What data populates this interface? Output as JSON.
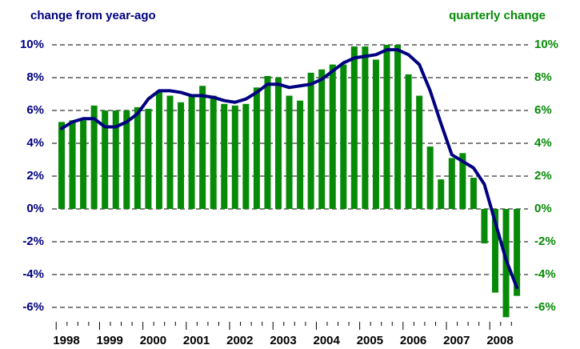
{
  "chart_data": {
    "type": "bar-line",
    "ylabel": "change from year-ago",
    "y2label": "quarterly change",
    "categories": [
      "1998",
      null,
      null,
      null,
      "1999",
      null,
      null,
      null,
      "2000",
      null,
      null,
      null,
      "2001",
      null,
      null,
      null,
      "2002",
      null,
      null,
      null,
      "2003",
      null,
      null,
      null,
      "2004",
      null,
      null,
      null,
      "2005",
      null,
      null,
      null,
      "2006",
      null,
      null,
      null,
      "2007",
      null,
      null,
      null,
      "2008",
      null,
      null
    ],
    "series": [
      {
        "name": "quarterly change",
        "type": "bar",
        "axis": "y2",
        "color": "#078a07",
        "values": [
          5.3,
          5.4,
          5.4,
          6.3,
          6.0,
          6.0,
          6.0,
          6.2,
          6.1,
          7.2,
          6.9,
          6.5,
          6.9,
          7.5,
          6.9,
          6.4,
          6.3,
          6.4,
          7.4,
          8.1,
          8.0,
          6.9,
          6.6,
          8.3,
          8.5,
          8.8,
          8.8,
          9.9,
          9.9,
          9.1,
          10.0,
          10.0,
          8.2,
          6.9,
          3.8,
          1.8,
          3.1,
          3.4,
          1.9,
          -2.1,
          -5.1,
          -6.6,
          -5.3
        ]
      },
      {
        "name": "change from year-ago",
        "type": "line",
        "color": "#000080",
        "values": [
          4.9,
          5.3,
          5.5,
          5.5,
          5.0,
          5.0,
          5.3,
          5.8,
          6.7,
          7.2,
          7.2,
          7.1,
          6.9,
          6.9,
          6.8,
          6.6,
          6.5,
          6.7,
          7.1,
          7.6,
          7.6,
          7.4,
          7.5,
          7.6,
          7.9,
          8.4,
          8.9,
          9.2,
          9.3,
          9.4,
          9.7,
          9.7,
          9.4,
          8.8,
          7.2,
          5.2,
          3.3,
          2.9,
          2.5,
          1.5,
          -0.8,
          -3.1,
          -4.8
        ]
      }
    ],
    "ylim": [
      -7,
      10
    ],
    "yticks": [
      {
        "value": -6,
        "label": "-6%"
      },
      {
        "value": -4,
        "label": "-4%"
      },
      {
        "value": -2,
        "label": "-2%"
      },
      {
        "value": 0,
        "label": "0%"
      },
      {
        "value": 2,
        "label": "2%"
      },
      {
        "value": 4,
        "label": "4%"
      },
      {
        "value": 6,
        "label": "6%"
      },
      {
        "value": 8,
        "label": "8%"
      },
      {
        "value": 10,
        "label": "10%"
      }
    ],
    "y2lim": [
      -7,
      10
    ],
    "y2ticks": [
      {
        "value": -6,
        "label": "-6%"
      },
      {
        "value": -4,
        "label": "-4%"
      },
      {
        "value": -2,
        "label": "-2%"
      },
      {
        "value": 0,
        "label": "0%"
      },
      {
        "value": 2,
        "label": "2%"
      },
      {
        "value": 4,
        "label": "4%"
      },
      {
        "value": 6,
        "label": "6%"
      },
      {
        "value": 8,
        "label": "8%"
      },
      {
        "value": 10,
        "label": "10%"
      }
    ],
    "grid": true
  }
}
